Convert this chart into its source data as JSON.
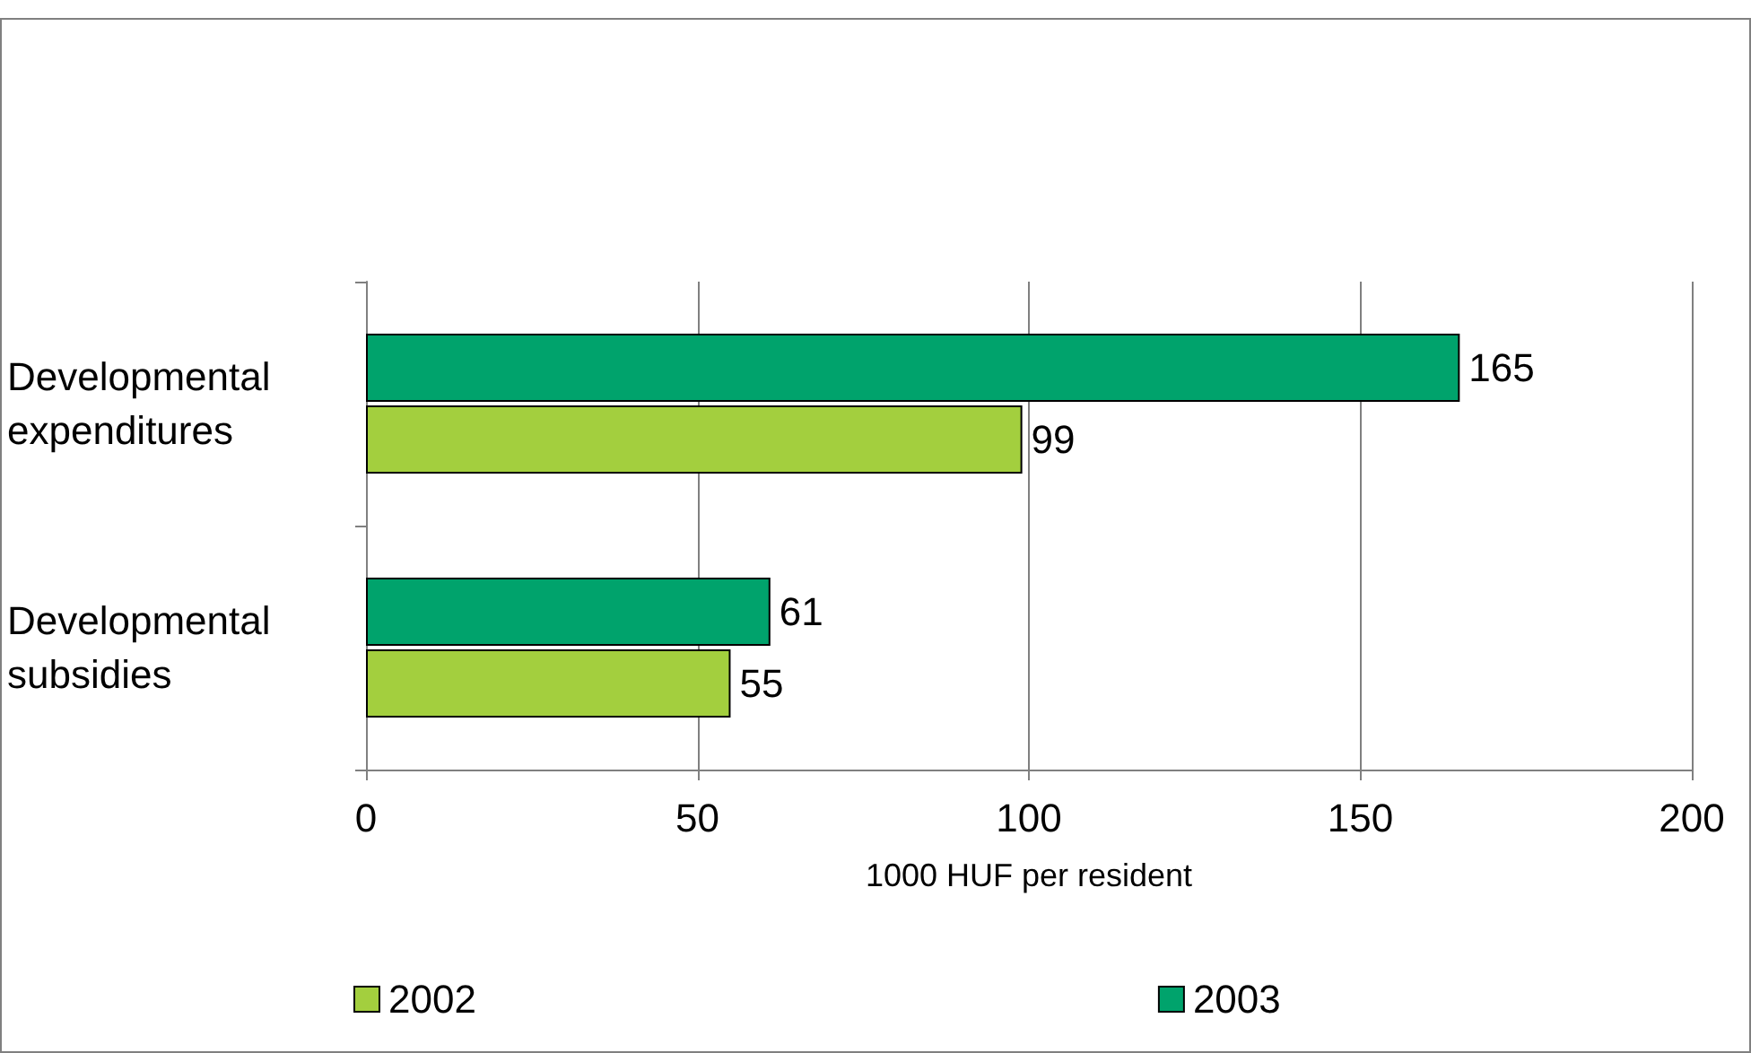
{
  "chart_data": {
    "type": "bar",
    "orientation": "horizontal",
    "xlabel": "1000 HUF per resident",
    "categories": [
      "Developmental\nexpenditures",
      "Developmental\nsubsidies"
    ],
    "series": [
      {
        "name": "2002",
        "color": "#a3cf3e",
        "values": [
          99,
          55
        ]
      },
      {
        "name": "2003",
        "color": "#00a36c",
        "values": [
          165,
          61
        ]
      }
    ],
    "xlim": [
      0,
      200
    ],
    "xticks": [
      0,
      50,
      100,
      150,
      200
    ],
    "grid": "x",
    "legend": "bottom",
    "data_labels": true
  }
}
